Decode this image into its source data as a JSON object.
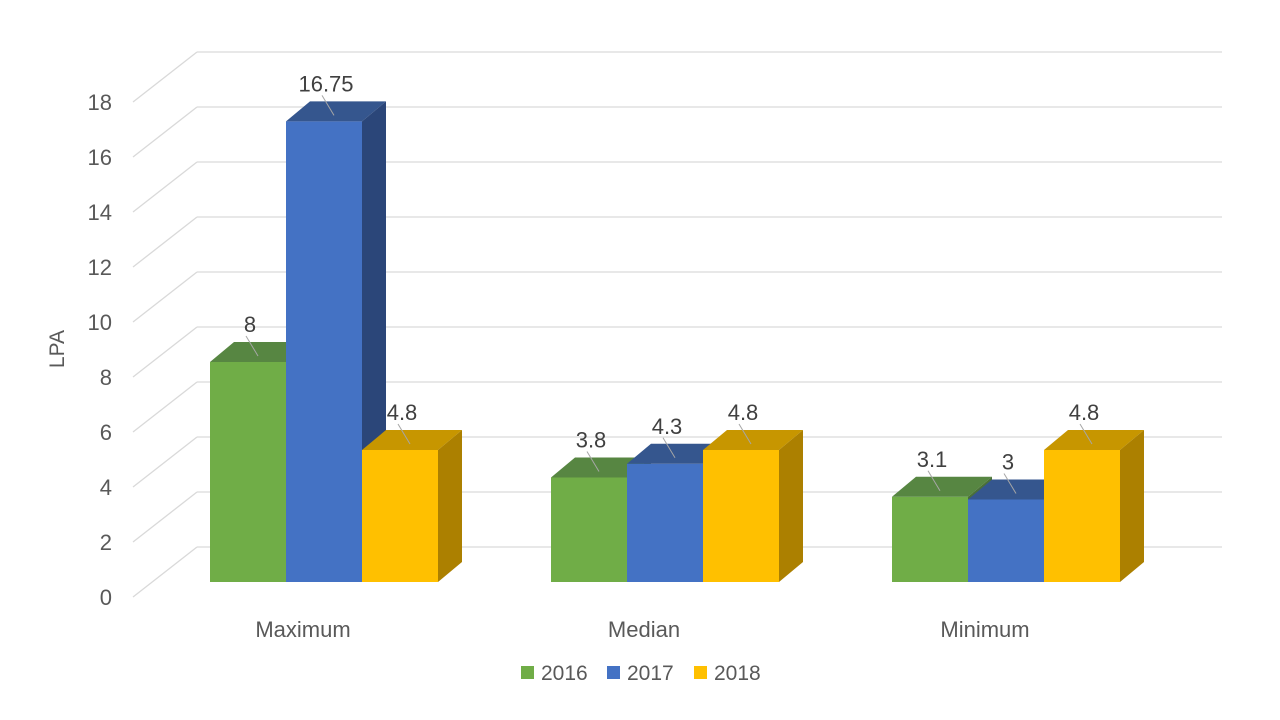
{
  "chart_data": {
    "type": "bar",
    "projection": "3d",
    "title": "",
    "xlabel": "",
    "ylabel": "LPA",
    "categories": [
      "Maximum",
      "Median",
      "Minimum"
    ],
    "series": [
      {
        "name": "2016",
        "values": [
          8,
          3.8,
          3.1
        ],
        "labels": [
          "8",
          "3.8",
          "3.1"
        ],
        "color": {
          "front": "#70AD47",
          "top": "#578642",
          "side": "#4A7038"
        }
      },
      {
        "name": "2017",
        "values": [
          16.75,
          4.3,
          3
        ],
        "labels": [
          "16.75",
          "4.3",
          "3"
        ],
        "color": {
          "front": "#4472C4",
          "top": "#35568E",
          "side": "#2B4679"
        }
      },
      {
        "name": "2018",
        "values": [
          4.8,
          4.8,
          4.8
        ],
        "labels": [
          "4.8",
          "4.8",
          "4.8"
        ],
        "color": {
          "front": "#FFC000",
          "top": "#C79600",
          "side": "#AC8000"
        }
      }
    ],
    "y_axis": {
      "min": 0,
      "max": 18,
      "step": 2,
      "tick_labels": [
        "0",
        "2",
        "4",
        "6",
        "8",
        "10",
        "12",
        "14",
        "16",
        "18"
      ]
    },
    "legend": {
      "position": "bottom",
      "entries": [
        "2016",
        "2017",
        "2018"
      ]
    },
    "grid": true,
    "data_labels_shown": true
  },
  "styles": {
    "axis_text_color": "#595959",
    "data_label_color": "#404040",
    "gridline_color": "#D9D9D9",
    "leader_line_color": "#A6A6A6",
    "background": "#FFFFFF"
  }
}
